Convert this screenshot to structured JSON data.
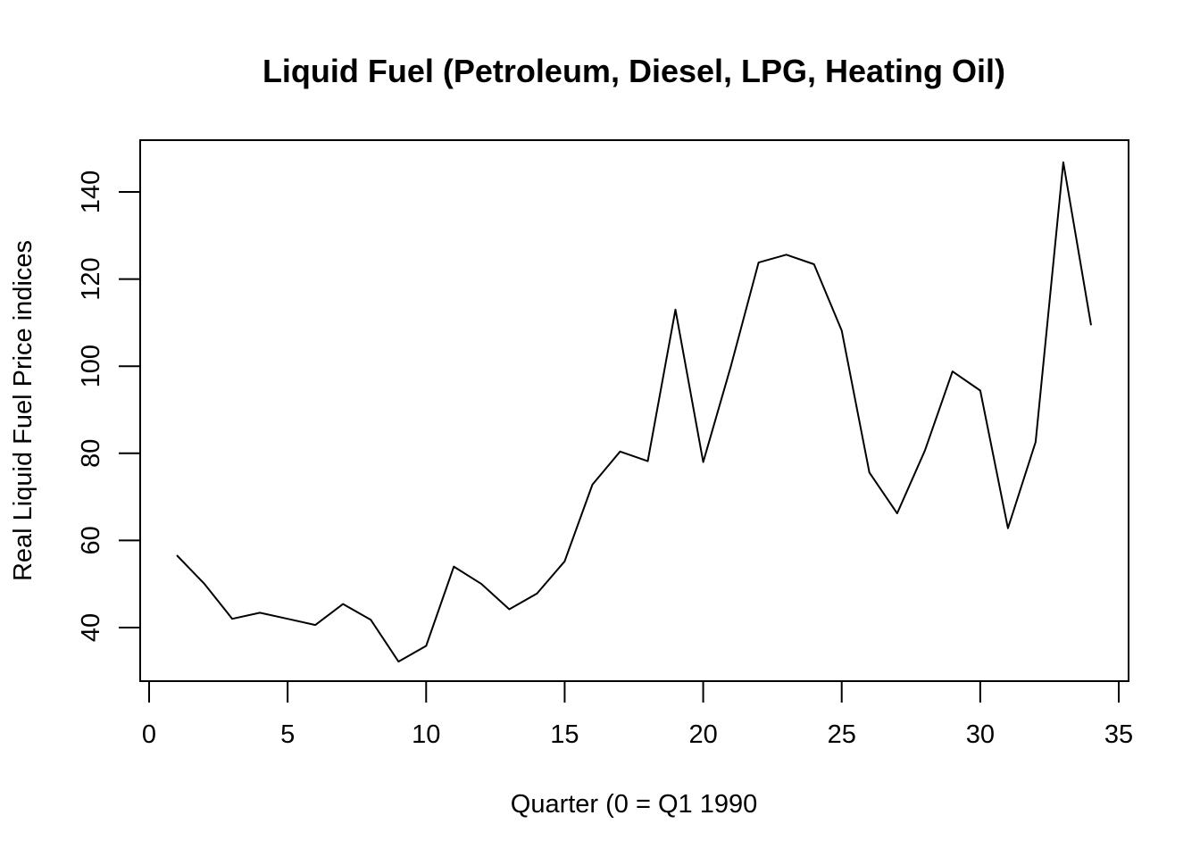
{
  "chart_data": {
    "type": "line",
    "title": "Liquid Fuel (Petroleum, Diesel, LPG, Heating Oil)",
    "xlabel": "Quarter (0 = Q1 1990",
    "ylabel": "Real Liquid Fuel Price indices",
    "xlim": [
      0,
      35
    ],
    "ylim": [
      28,
      148
    ],
    "x_ticks": [
      0,
      5,
      10,
      15,
      20,
      25,
      30,
      35
    ],
    "y_ticks": [
      40,
      60,
      80,
      100,
      120,
      140
    ],
    "grid": false,
    "legend": "none",
    "x": [
      1,
      2,
      3,
      4,
      5,
      6,
      7,
      8,
      9,
      10,
      11,
      12,
      13,
      14,
      15,
      16,
      17,
      18,
      19,
      20,
      21,
      22,
      23,
      24,
      25,
      26,
      27,
      28,
      29,
      30,
      31,
      32,
      33,
      34
    ],
    "values": [
      56.6,
      50.0,
      42.0,
      43.4,
      42.0,
      40.6,
      45.4,
      41.8,
      32.2,
      35.8,
      54.0,
      50.0,
      44.2,
      47.8,
      55.2,
      72.8,
      80.4,
      78.2,
      113.0,
      78.0,
      100.0,
      123.8,
      125.6,
      123.4,
      108.2,
      75.6,
      66.2,
      80.6,
      98.8,
      94.4,
      62.8,
      82.6,
      146.8,
      109.4
    ],
    "line_color": "#000000"
  }
}
